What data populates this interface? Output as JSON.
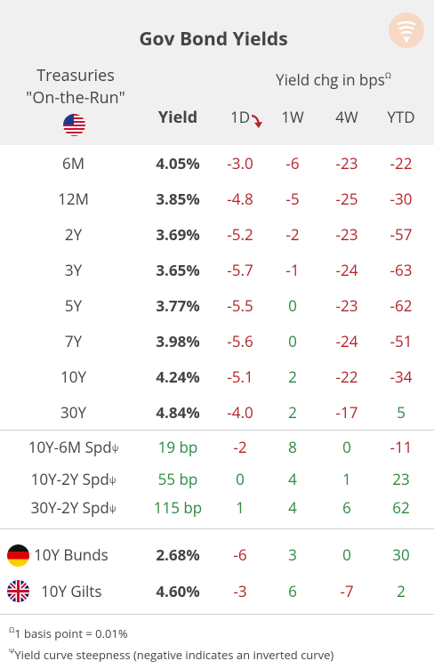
{
  "title": "Gov Bond Yields",
  "header": {
    "treasuries_line1": "Treasuries",
    "treasuries_line2": "\"On-the-Run\"",
    "yield": "Yield",
    "chg_label": "Yield chg in bps",
    "chg_sup": "Ω",
    "cols": [
      "1D",
      "1W",
      "4W",
      "YTD"
    ]
  },
  "rows": [
    {
      "label": "6M",
      "yield": "4.05%",
      "d": "-3.0",
      "w": "-6",
      "m": "-23",
      "ytd": "-22"
    },
    {
      "label": "12M",
      "yield": "3.85%",
      "d": "-4.8",
      "w": "-5",
      "m": "-25",
      "ytd": "-30"
    },
    {
      "label": "2Y",
      "yield": "3.69%",
      "d": "-5.2",
      "w": "-2",
      "m": "-23",
      "ytd": "-57"
    },
    {
      "label": "3Y",
      "yield": "3.65%",
      "d": "-5.7",
      "w": "-1",
      "m": "-24",
      "ytd": "-63"
    },
    {
      "label": "5Y",
      "yield": "3.77%",
      "d": "-5.5",
      "w": "0",
      "m": "-23",
      "ytd": "-62"
    },
    {
      "label": "7Y",
      "yield": "3.98%",
      "d": "-5.6",
      "w": "0",
      "m": "-24",
      "ytd": "-51"
    },
    {
      "label": "10Y",
      "yield": "4.24%",
      "d": "-5.1",
      "w": "2",
      "m": "-22",
      "ytd": "-34"
    },
    {
      "label": "30Y",
      "yield": "4.84%",
      "d": "-4.0",
      "w": "2",
      "m": "-17",
      "ytd": "5"
    }
  ],
  "spreads": [
    {
      "label": "10Y-6M Spd",
      "sup": "ψ",
      "yield": "19 bp",
      "d": "-2",
      "w": "8",
      "m": "0",
      "ytd": "-11"
    },
    {
      "label": "10Y-2Y Spd",
      "sup": "ψ",
      "yield": "55 bp",
      "d": "0",
      "w": "4",
      "m": "1",
      "ytd": "23"
    },
    {
      "label": "30Y-2Y Spd",
      "sup": "ψ",
      "yield": "115 bp",
      "d": "1",
      "w": "4",
      "m": "6",
      "ytd": "62"
    }
  ],
  "intl": [
    {
      "label": "10Y Bunds",
      "yield": "2.68%",
      "d": "-6",
      "w": "3",
      "m": "0",
      "ytd": "30"
    },
    {
      "label": "10Y Gilts",
      "yield": "4.60%",
      "d": "-3",
      "w": "6",
      "m": "-7",
      "ytd": "2"
    }
  ],
  "footnotes": {
    "note1_sup": "Ω",
    "note1": "1 basis point = 0.01%",
    "note2_sup": "Ψ",
    "note2": "Yield curve steepness (negative indicates an inverted curve)"
  },
  "colors": {
    "negative": "#b2242a",
    "positive": "#2b8a3e",
    "header_bg": "#f0f0f0"
  },
  "icons": {
    "logo": "signal-logo-icon",
    "sort": "down-arrow-icon"
  }
}
